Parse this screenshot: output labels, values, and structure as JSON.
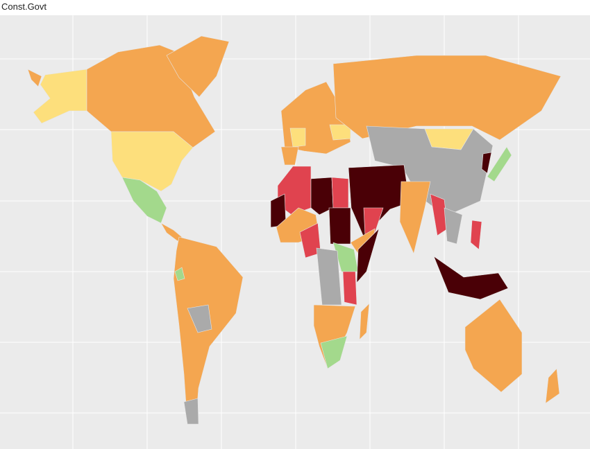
{
  "title": "Const.Govt"
}
